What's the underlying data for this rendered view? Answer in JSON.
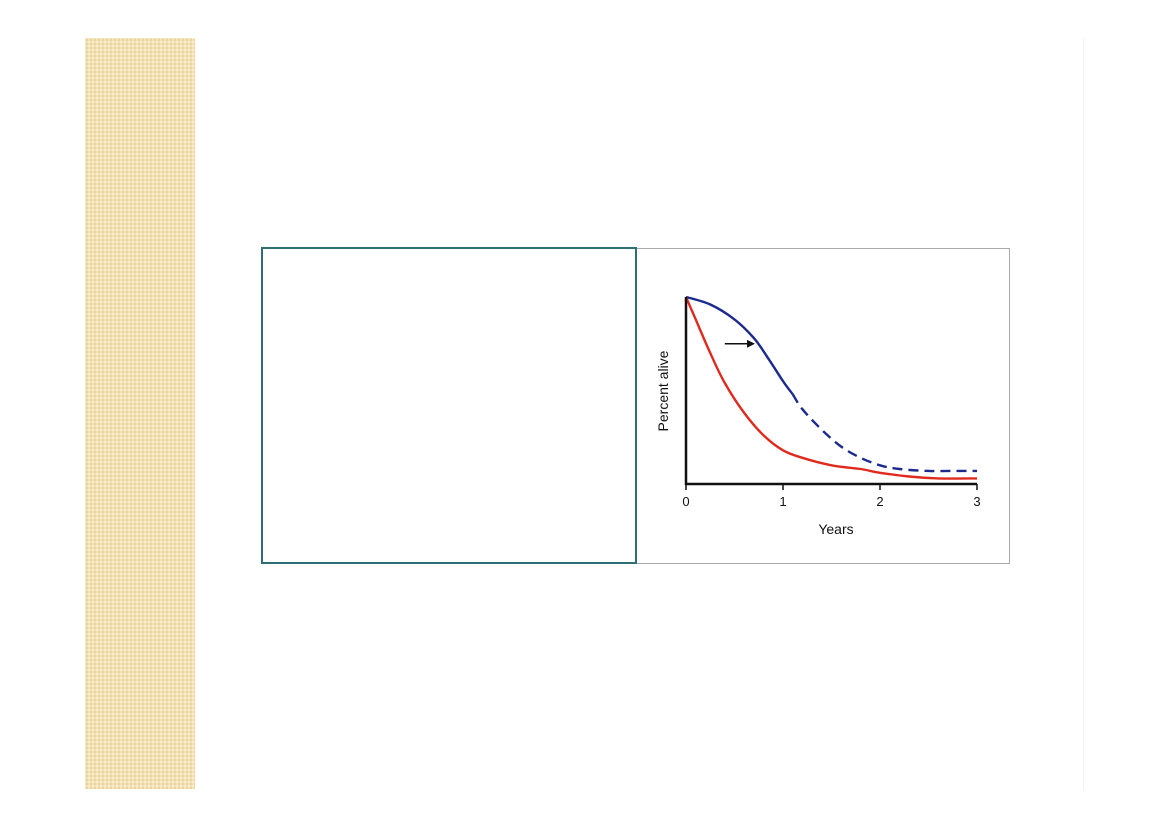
{
  "slide": {
    "accent_color": "#f3e2b6",
    "box_border_color": "#2e6e76"
  },
  "chart_data": {
    "type": "line",
    "title": "",
    "xlabel": "Years",
    "ylabel": "Percent alive",
    "xlim": [
      0,
      3
    ],
    "ylim": [
      0,
      100
    ],
    "x_ticks": [
      "0",
      "1",
      "2",
      "3"
    ],
    "y_ticks": [],
    "grid": false,
    "legend": "none",
    "annotations": [
      {
        "type": "arrow",
        "direction": "right",
        "x_from": 0.4,
        "x_to": 0.7,
        "y": 75
      }
    ],
    "series": [
      {
        "color": "#1c2a8e",
        "style": "solid then dashed after ~1.1 years",
        "dash_from_x": 1.1,
        "x": [
          0,
          0.25,
          0.5,
          0.7,
          0.85,
          1.0,
          1.1,
          1.2,
          1.4,
          1.6,
          1.8,
          2.0,
          2.2,
          2.5,
          2.8,
          3.0
        ],
        "y": [
          100,
          96,
          88,
          78,
          67,
          55,
          48,
          40,
          29,
          20,
          14,
          10,
          8,
          7,
          7,
          7
        ]
      },
      {
        "color": "#e02a1e",
        "style": "solid",
        "x": [
          0,
          0.1,
          0.25,
          0.4,
          0.6,
          0.8,
          1.0,
          1.2,
          1.5,
          1.8,
          2.0,
          2.3,
          2.6,
          3.0
        ],
        "y": [
          100,
          88,
          70,
          54,
          38,
          26,
          18,
          14,
          10,
          8,
          6,
          4,
          3,
          3
        ]
      }
    ]
  }
}
